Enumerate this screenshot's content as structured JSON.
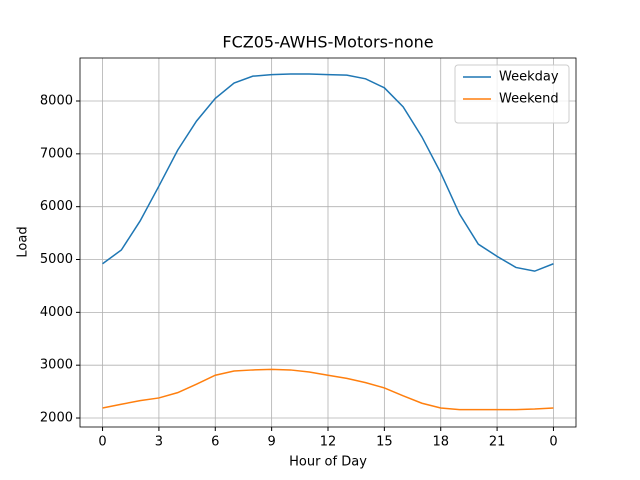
{
  "chart_data": {
    "type": "line",
    "title": "FCZ05-AWHS-Motors-none",
    "xlabel": "Hour of Day",
    "ylabel": "Load",
    "x": [
      0,
      1,
      2,
      3,
      4,
      5,
      6,
      7,
      8,
      9,
      10,
      11,
      12,
      13,
      14,
      15,
      16,
      17,
      18,
      19,
      20,
      21,
      22,
      23,
      24
    ],
    "series": [
      {
        "name": "Weekday",
        "color": "#1f77b4",
        "values": [
          4920,
          5180,
          5730,
          6390,
          7070,
          7620,
          8050,
          8340,
          8470,
          8500,
          8510,
          8510,
          8500,
          8490,
          8420,
          8250,
          7890,
          7320,
          6640,
          5860,
          5290,
          5060,
          4850,
          4780,
          4920
        ]
      },
      {
        "name": "Weekend",
        "color": "#ff7f0e",
        "values": [
          2190,
          2260,
          2330,
          2380,
          2480,
          2640,
          2810,
          2890,
          2910,
          2920,
          2910,
          2870,
          2810,
          2750,
          2670,
          2570,
          2420,
          2280,
          2190,
          2160,
          2160,
          2160,
          2160,
          2170,
          2190
        ]
      }
    ],
    "xlim": [
      -1.2,
      25.2
    ],
    "ylim": [
      1830,
      8814
    ],
    "xticks": [
      0,
      3,
      6,
      9,
      12,
      15,
      18,
      21,
      {
        "value": 24,
        "label": "0"
      }
    ],
    "yticks": [
      2000,
      3000,
      4000,
      5000,
      6000,
      7000,
      8000
    ],
    "grid": true,
    "legend": "upper-right"
  }
}
